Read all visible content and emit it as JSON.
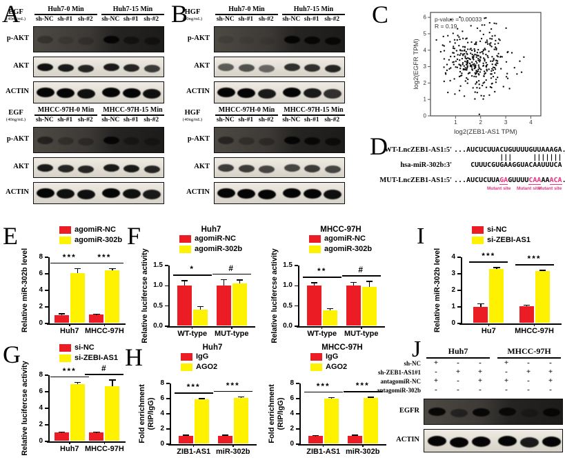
{
  "colors": {
    "red": "#EC1C24",
    "yellow": "#FFF200",
    "pink": "#E8317F",
    "band": "#050505"
  },
  "panels": {
    "A": {
      "letter": "A",
      "reagent": "EGF",
      "conc": "(40ng/mL)",
      "sections": [
        {
          "groups": [
            "Huh7-0 Min",
            "Huh7-15 Min"
          ],
          "lanes": [
            "sh-NC",
            "sh-#1",
            "sh-#2",
            "sh-NC",
            "sh-#1",
            "sh-#2"
          ],
          "rows": [
            {
              "label": "p-AKT",
              "bg": "dark",
              "tall": true,
              "bands": [
                0.3,
                0.15,
                0.2,
                1,
                0.55,
                0.5
              ]
            },
            {
              "label": "AKT",
              "bg": "light",
              "bands": [
                0.95,
                0.9,
                0.85,
                0.9,
                0.85,
                0.75
              ]
            },
            {
              "label": "ACTIN",
              "bg": "light",
              "thick": true,
              "bands": [
                1,
                1,
                0.95,
                1,
                1,
                0.95
              ]
            }
          ]
        },
        {
          "groups": [
            "MHCC-97H-0 Min",
            "MHCC-97H-15 Min"
          ],
          "lanes": [
            "sh-NC",
            "sh-#1",
            "sh-#2",
            "sh-NC",
            "sh-#1",
            "sh-#2"
          ],
          "rows": [
            {
              "label": "p-AKT",
              "bg": "dark",
              "tall": true,
              "bands": [
                0.55,
                0.3,
                0.3,
                1,
                0.4,
                0.35
              ]
            },
            {
              "label": "AKT",
              "bg": "light",
              "bands": [
                0.9,
                0.85,
                0.85,
                0.9,
                0.9,
                0.85
              ]
            },
            {
              "label": "ACTIN",
              "bg": "light",
              "thick": true,
              "bands": [
                1,
                0.95,
                0.95,
                1,
                0.95,
                0.9
              ]
            }
          ]
        }
      ]
    },
    "B": {
      "letter": "B",
      "reagent": "HGF",
      "conc": "(40ng/mL)",
      "sections": [
        {
          "groups": [
            "Huh7-0 Min",
            "Huh7-15 Min"
          ],
          "lanes": [
            "sh-NC",
            "sh-#1",
            "sh-#2",
            "sh-NC",
            "sh-#1",
            "sh-#2"
          ],
          "rows": [
            {
              "label": "p-AKT",
              "bg": "dark",
              "tall": true,
              "bands": [
                0.12,
                0.08,
                0.08,
                1,
                0.95,
                0.9
              ]
            },
            {
              "label": "AKT",
              "bg": "light",
              "bands": [
                0.6,
                0.65,
                0.55,
                0.8,
                0.8,
                0.85
              ]
            },
            {
              "label": "ACTIN",
              "bg": "light",
              "thick": true,
              "bands": [
                1,
                1,
                0.9,
                1,
                0.9,
                0.8
              ]
            }
          ]
        },
        {
          "groups": [
            "MHCC-97H-0 Min",
            "MHCC-97H-15 Min"
          ],
          "lanes": [
            "sh-NC",
            "sh-#1",
            "sh-#2",
            "sh-NC",
            "sh-#1",
            "sh-#2"
          ],
          "rows": [
            {
              "label": "p-AKT",
              "bg": "dark",
              "tall": true,
              "bands": [
                0.5,
                0.3,
                0.3,
                1,
                0.9,
                0.75
              ]
            },
            {
              "label": "AKT",
              "bg": "light",
              "bands": [
                0.75,
                0.75,
                0.7,
                0.7,
                0.75,
                0.7
              ]
            },
            {
              "label": "ACTIN",
              "bg": "light",
              "thick": true,
              "bands": [
                1,
                1,
                1,
                1,
                1,
                0.95
              ]
            }
          ]
        }
      ]
    },
    "C": {
      "letter": "C"
    },
    "D": {
      "letter": "D",
      "wt_label": "WT-LncZEB1-AS1:5'",
      "wt_seq": "...AUCUCUUACUGUUUUGUUAAAGA...",
      "pair_bars": "           |||     |||||||",
      "mir_label": "hsa-miR-302b:3'",
      "mir_seq": "    CUUUCGUGAAGGUACAAUUUCA",
      "mut_label": "MUT-LncZEB1-AS1:5'",
      "mut_segments": [
        {
          "t": "...AUCUCUUA",
          "hl": false
        },
        {
          "t": "GA",
          "hl": true
        },
        {
          "t": "GUUUU",
          "hl": false
        },
        {
          "t": "CAA",
          "hl": true
        },
        {
          "t": "AA",
          "hl": false
        },
        {
          "t": "ACA",
          "hl": true
        },
        {
          "t": "...",
          "hl": false
        }
      ],
      "mutant_site_label": "Mutant site",
      "mutant_site_x": [
        163,
        206,
        237
      ]
    },
    "E": {
      "letter": "E"
    },
    "F": {
      "letter": "F"
    },
    "G": {
      "letter": "G"
    },
    "H": {
      "letter": "H"
    },
    "I": {
      "letter": "I"
    },
    "J": {
      "letter": "J",
      "groups": [
        "Huh7",
        "MHCC-97H"
      ],
      "treatments": [
        {
          "label": "sh-NC",
          "signs": [
            "+",
            "-",
            "-",
            "+",
            "-",
            "-"
          ]
        },
        {
          "label": "sh-ZEB1-AS1#1",
          "signs": [
            "-",
            "+",
            "+",
            "-",
            "+",
            "+"
          ]
        },
        {
          "label": "antagomiR-NC",
          "signs": [
            "+",
            "-",
            "+",
            "+",
            "-",
            "+"
          ]
        },
        {
          "label": "antagomiR-302b",
          "signs": [
            "-",
            "-",
            "-",
            "-",
            "-",
            "-"
          ]
        }
      ],
      "rows": [
        {
          "label": "EGFR",
          "bg": "dark",
          "tall": true,
          "bands": [
            0.95,
            0.5,
            0.95,
            0.9,
            0.3,
            0.95
          ]
        },
        {
          "label": "ACTIN",
          "bg": "light",
          "thick": true,
          "bands": [
            1,
            1,
            1,
            1,
            0.9,
            1
          ]
        }
      ]
    }
  },
  "chart_data": [
    {
      "id": "C",
      "type": "scatter",
      "title": "",
      "xlabel": "log2(ZEB1-AS1 TPM)",
      "ylabel": "log2(EGFR TPM)",
      "xlim": [
        0,
        4.4
      ],
      "ylim": [
        0,
        6.3
      ],
      "xticks": [
        1,
        2,
        3,
        4
      ],
      "yticks": [
        0,
        1,
        2,
        3,
        4,
        5,
        6
      ],
      "annotation": [
        "p-value = 0.00033",
        "R = 0.19"
      ],
      "n_points": 330,
      "x_mean": 1.85,
      "x_sd": 0.62,
      "y_mean": 3.4,
      "y_sd": 1.05,
      "seed": 7,
      "legend_position": "none",
      "grid": false
    },
    {
      "id": "E",
      "type": "bar",
      "title": "",
      "ylabel": "Relative miR-302b level",
      "ylim": [
        0,
        8
      ],
      "yticks": [
        0,
        2,
        4,
        6,
        8
      ],
      "categories": [
        "Huh7",
        "MHCC-97H"
      ],
      "series": [
        {
          "name": "agomiR-NC",
          "color": "#EC1C24",
          "values": [
            1.0,
            1.05
          ],
          "errors": [
            0.15,
            0.05
          ]
        },
        {
          "name": "agomiR-302b",
          "color": "#FFF200",
          "values": [
            6.1,
            6.4
          ],
          "errors": [
            0.5,
            0.2
          ]
        }
      ],
      "sig": [
        "***",
        "***"
      ],
      "legend_position": "top-left",
      "grid": false
    },
    {
      "id": "F1",
      "type": "bar",
      "title": "Huh7",
      "ylabel": "Relative lucifercse activity",
      "ylim": [
        0,
        1.5
      ],
      "yticks": [
        0.0,
        0.5,
        1.0,
        1.5
      ],
      "ydp": 1,
      "categories": [
        "WT-type",
        "MUT-type"
      ],
      "series": [
        {
          "name": "agomiR-NC",
          "color": "#EC1C24",
          "values": [
            1.0,
            1.0
          ],
          "errors": [
            0.12,
            0.15
          ]
        },
        {
          "name": "agomiR-302b",
          "color": "#FFF200",
          "values": [
            0.41,
            1.06
          ],
          "errors": [
            0.07,
            0.08
          ]
        }
      ],
      "sig": [
        "*",
        "#"
      ],
      "legend_position": "top-left",
      "grid": false
    },
    {
      "id": "F2",
      "type": "bar",
      "title": "MHCC-97H",
      "ylabel": "Relative lucifercse activity",
      "ylim": [
        0,
        1.5
      ],
      "yticks": [
        0.0,
        0.5,
        1.0,
        1.5
      ],
      "ydp": 1,
      "categories": [
        "WT-type",
        "MUT-type"
      ],
      "series": [
        {
          "name": "agomiR-NC",
          "color": "#EC1C24",
          "values": [
            1.0,
            1.0
          ],
          "errors": [
            0.07,
            0.08
          ]
        },
        {
          "name": "agomiR-302b",
          "color": "#FFF200",
          "values": [
            0.39,
            0.97
          ],
          "errors": [
            0.04,
            0.13
          ]
        }
      ],
      "sig": [
        "**",
        "#"
      ],
      "legend_position": "top-left",
      "grid": false
    },
    {
      "id": "G",
      "type": "bar",
      "title": "",
      "ylabel": "Relative lucifercse activity",
      "ylim": [
        0,
        8
      ],
      "yticks": [
        0,
        2,
        4,
        6,
        8
      ],
      "categories": [
        "Huh7",
        "MHCC-97H"
      ],
      "series": [
        {
          "name": "si-NC",
          "color": "#EC1C24",
          "values": [
            1.05,
            1.05
          ],
          "errors": [
            0.06,
            0.06
          ]
        },
        {
          "name": "si-ZEBI-AS1",
          "color": "#FFF200",
          "values": [
            6.9,
            6.7
          ],
          "errors": [
            0.2,
            0.7
          ]
        }
      ],
      "sig": [
        "***",
        "#"
      ],
      "legend_position": "top-left",
      "grid": false
    },
    {
      "id": "H1",
      "type": "bar",
      "title": "Huh7",
      "ylabel": "Fold enrichment",
      "ylabel2": "(RIP/IgG)",
      "ylim": [
        0,
        8
      ],
      "yticks": [
        0,
        2,
        4,
        6,
        8
      ],
      "categories": [
        "ZIB1-AS1",
        "miR-302b"
      ],
      "series": [
        {
          "name": "IgG",
          "color": "#EC1C24",
          "values": [
            1.1,
            1.1
          ],
          "errors": [
            0.08,
            0.08
          ]
        },
        {
          "name": "AGO2",
          "color": "#FFF200",
          "values": [
            5.9,
            6.1
          ],
          "errors": [
            0.1,
            0.1
          ]
        }
      ],
      "sig": [
        "***",
        "***"
      ],
      "legend_position": "top-left",
      "grid": false
    },
    {
      "id": "H2",
      "type": "bar",
      "title": "MHCC-97H",
      "ylabel": "Fold enrichment",
      "ylabel2": "(RIP/IgG)",
      "ylim": [
        0,
        8
      ],
      "yticks": [
        0,
        2,
        4,
        6,
        8
      ],
      "categories": [
        "ZIB1-AS1",
        "miR-302b"
      ],
      "series": [
        {
          "name": "IgG",
          "color": "#EC1C24",
          "values": [
            1.05,
            1.1
          ],
          "errors": [
            0.08,
            0.08
          ]
        },
        {
          "name": "AGO2",
          "color": "#FFF200",
          "values": [
            6.0,
            6.05
          ],
          "errors": [
            0.1,
            0.1
          ]
        }
      ],
      "sig": [
        "***",
        "***"
      ],
      "legend_position": "top-left",
      "grid": false
    },
    {
      "id": "I",
      "type": "bar",
      "title": "",
      "ylabel": "Relative miR-302b level",
      "ylim": [
        0,
        4
      ],
      "yticks": [
        0,
        1,
        2,
        3,
        4
      ],
      "categories": [
        "Hu7",
        "MHCC-97H"
      ],
      "series": [
        {
          "name": "si-NC",
          "color": "#EC1C24",
          "values": [
            1.0,
            1.05
          ],
          "errors": [
            0.18,
            0.05
          ]
        },
        {
          "name": "si-ZEBI-AS1",
          "color": "#FFF200",
          "values": [
            3.3,
            3.15
          ],
          "errors": [
            0.07,
            0.06
          ]
        }
      ],
      "sig": [
        "***",
        "***"
      ],
      "legend_position": "top-left",
      "grid": false
    }
  ]
}
